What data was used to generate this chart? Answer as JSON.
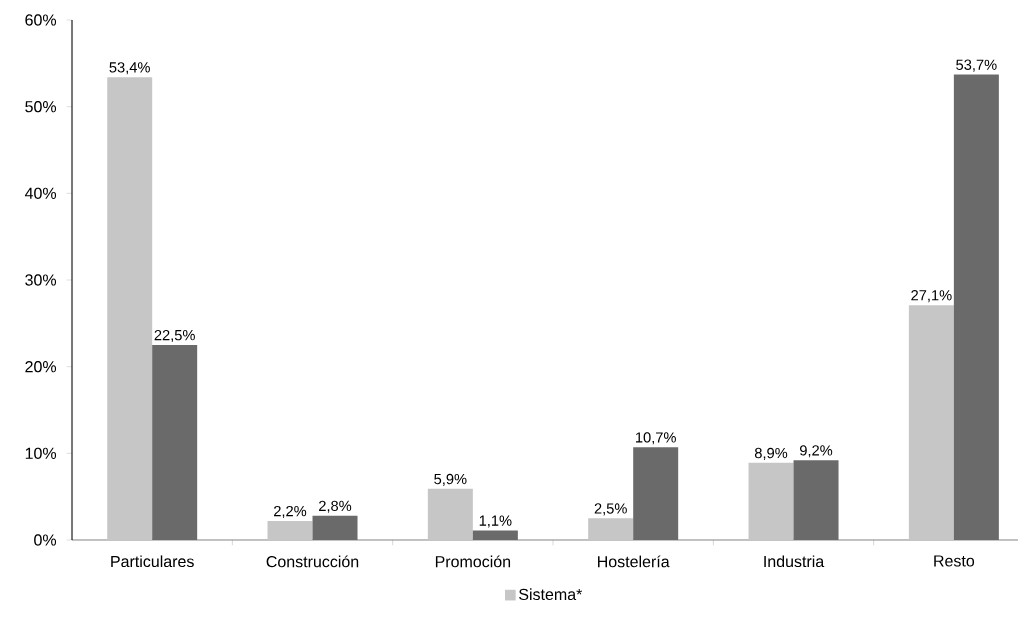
{
  "chart_data": {
    "type": "bar",
    "categories": [
      "Particulares",
      "Construcción",
      "Promoción",
      "Hostelería",
      "Industria",
      "Resto"
    ],
    "series": [
      {
        "name": "Sistema*",
        "color": "#c6c6c6",
        "values": [
          53.4,
          2.2,
          5.9,
          2.5,
          8.9,
          27.1
        ],
        "value_labels": [
          "53,4%",
          "2,2%",
          "5,9%",
          "2,5%",
          "8,9%",
          "27,1%"
        ]
      },
      {
        "color": "#6a6a6a",
        "values": [
          22.5,
          2.8,
          1.1,
          10.7,
          9.2,
          53.7
        ],
        "value_labels": [
          "22,5%",
          "2,8%",
          "1,1%",
          "10,7%",
          "9,2%",
          "53,7%"
        ]
      }
    ],
    "ylim": [
      0,
      60
    ],
    "yticks": [
      {
        "value": 0,
        "label": "0%"
      },
      {
        "value": 10,
        "label": "10%"
      },
      {
        "value": 20,
        "label": "20%"
      },
      {
        "value": 30,
        "label": "30%"
      },
      {
        "value": 40,
        "label": "40%"
      },
      {
        "value": 50,
        "label": "50%"
      },
      {
        "value": 60,
        "label": "60%"
      }
    ],
    "legend": "bottom"
  }
}
